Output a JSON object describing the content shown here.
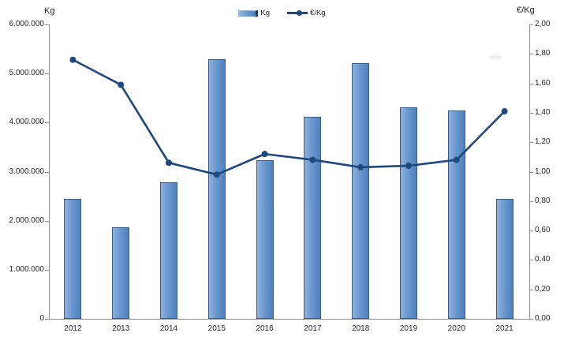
{
  "chart_data": {
    "type": "combo-bar-line",
    "categories": [
      "2012",
      "2013",
      "2014",
      "2015",
      "2016",
      "2017",
      "2018",
      "2019",
      "2020",
      "2021"
    ],
    "series": [
      {
        "name": "Kg",
        "type": "bar",
        "axis": "left",
        "color": "#4f81bd",
        "border_color": "#385d8a",
        "values": [
          2450000,
          1870000,
          2780000,
          5300000,
          3240000,
          4120000,
          5210000,
          4310000,
          4250000,
          2440000
        ]
      },
      {
        "name": "€/Kg",
        "type": "line",
        "axis": "right",
        "color": "#1f497d",
        "values": [
          1.76,
          1.59,
          1.06,
          0.98,
          1.12,
          1.08,
          1.03,
          1.04,
          1.08,
          1.41
        ]
      }
    ],
    "left_axis": {
      "title": "Kg",
      "min": 0,
      "max": 6000000,
      "tick_labels": [
        "0",
        "1.000.000",
        "2.000.000",
        "3.000.000",
        "4.000.000",
        "5.000.000",
        "6.000.000"
      ]
    },
    "right_axis": {
      "title": "€/Kg",
      "min": 0,
      "max": 2,
      "tick_labels": [
        "0,00",
        "0,20",
        "0,40",
        "0,60",
        "0,80",
        "1,00",
        "1,20",
        "1,40",
        "1,60",
        "1,80",
        "2,00"
      ]
    },
    "legend": {
      "position": "top",
      "items": [
        "Kg",
        "€/Kg"
      ]
    },
    "grid": "off",
    "background": "#ffffff"
  }
}
